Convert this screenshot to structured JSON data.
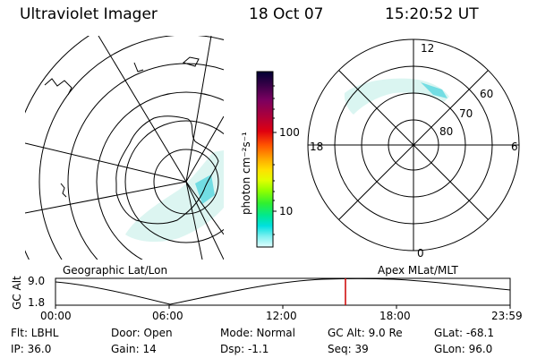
{
  "header": {
    "title": "Ultraviolet Imager",
    "date": "18 Oct 07",
    "time": "15:20:52 UT"
  },
  "geo_panel": {
    "label": "Geographic Lat/Lon"
  },
  "apex_panel": {
    "label": "Apex MLat/MLT",
    "mlt_labels": {
      "top": "12",
      "left": "18",
      "right": "6",
      "bottom": "0"
    },
    "lat_labels": [
      "60",
      "70",
      "80"
    ]
  },
  "colorbar": {
    "unit_label": "photon cm⁻²s⁻¹",
    "ticks": [
      "100",
      "10"
    ],
    "colors": [
      "#000033",
      "#3a0048",
      "#7a0060",
      "#b00038",
      "#e00010",
      "#ff5500",
      "#ffaa00",
      "#ffe000",
      "#e0ff00",
      "#90ff00",
      "#30f030",
      "#00e890",
      "#00e0e0",
      "#80f0f0",
      "#e0ffff"
    ]
  },
  "altitude_plot": {
    "axis_label": "GC Alt",
    "y_ticks": [
      "9.0",
      "1.8"
    ],
    "x_ticks": [
      "00:00",
      "06:00",
      "12:00",
      "18:00",
      "23:59"
    ],
    "marker_color": "#cc0000"
  },
  "info": {
    "filter": "Flt: LBHL",
    "ip": "IP: 36.0",
    "door": "Door: Open",
    "gain": "Gain: 14",
    "mode": "Mode: Normal",
    "dsp": "Dsp:   -1.1",
    "gc_alt": "GC Alt: 9.0 Re",
    "seq": "Seq: 39",
    "glat": "GLat: -68.1",
    "glon": "GLon:  96.0"
  }
}
